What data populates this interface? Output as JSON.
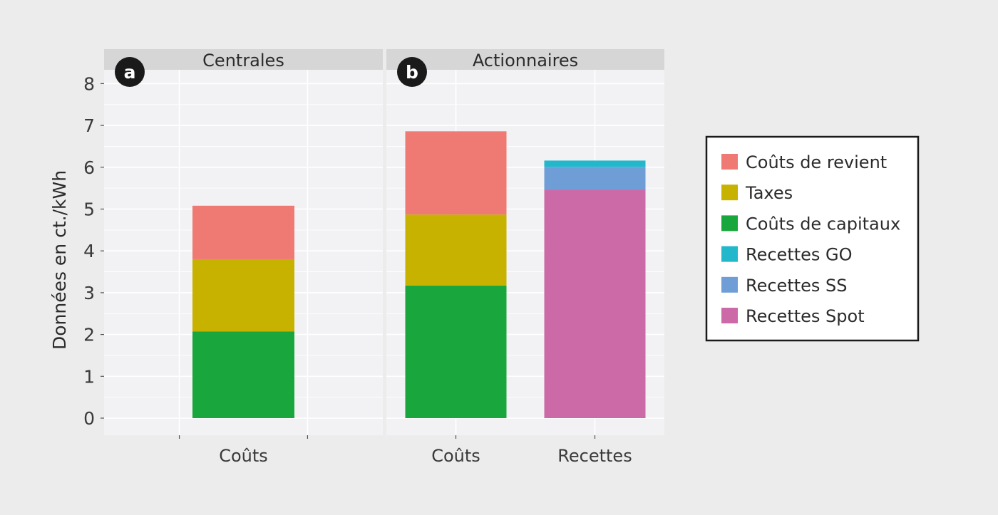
{
  "chart_data": {
    "type": "bar",
    "stacked": true,
    "ylabel": "Données en ct./kWh",
    "ylim": [
      0,
      8.3
    ],
    "yticks": [
      0,
      1,
      2,
      3,
      4,
      5,
      6,
      7,
      8
    ],
    "grid": true,
    "legend_position": "right",
    "panels": [
      {
        "badge": "a",
        "title": "Centrales",
        "categories": [
          "Coûts"
        ],
        "series": [
          {
            "name": "Coûts de capitaux",
            "values": [
              2.07
            ]
          },
          {
            "name": "Taxes",
            "values": [
              1.73
            ]
          },
          {
            "name": "Coûts de revient",
            "values": [
              1.28
            ]
          }
        ]
      },
      {
        "badge": "b",
        "title": "Actionnaires",
        "categories": [
          "Coûts",
          "Recettes"
        ],
        "series": [
          {
            "name": "Coûts de capitaux",
            "values": [
              3.17,
              0
            ]
          },
          {
            "name": "Taxes",
            "values": [
              1.7,
              0
            ]
          },
          {
            "name": "Coûts de revient",
            "values": [
              1.99,
              0
            ]
          },
          {
            "name": "Recettes Spot",
            "values": [
              0,
              5.46
            ]
          },
          {
            "name": "Recettes SS",
            "values": [
              0,
              0.55
            ]
          },
          {
            "name": "Recettes GO",
            "values": [
              0,
              0.15
            ]
          }
        ]
      }
    ],
    "legend": [
      {
        "name": "Coûts de revient",
        "color": "#ef7a74"
      },
      {
        "name": "Taxes",
        "color": "#c8b200"
      },
      {
        "name": "Coûts de capitaux",
        "color": "#19a63c"
      },
      {
        "name": "Recettes GO",
        "color": "#23b7cc"
      },
      {
        "name": "Recettes SS",
        "color": "#6f9ed6"
      },
      {
        "name": "Recettes Spot",
        "color": "#cc6aa8"
      }
    ]
  }
}
